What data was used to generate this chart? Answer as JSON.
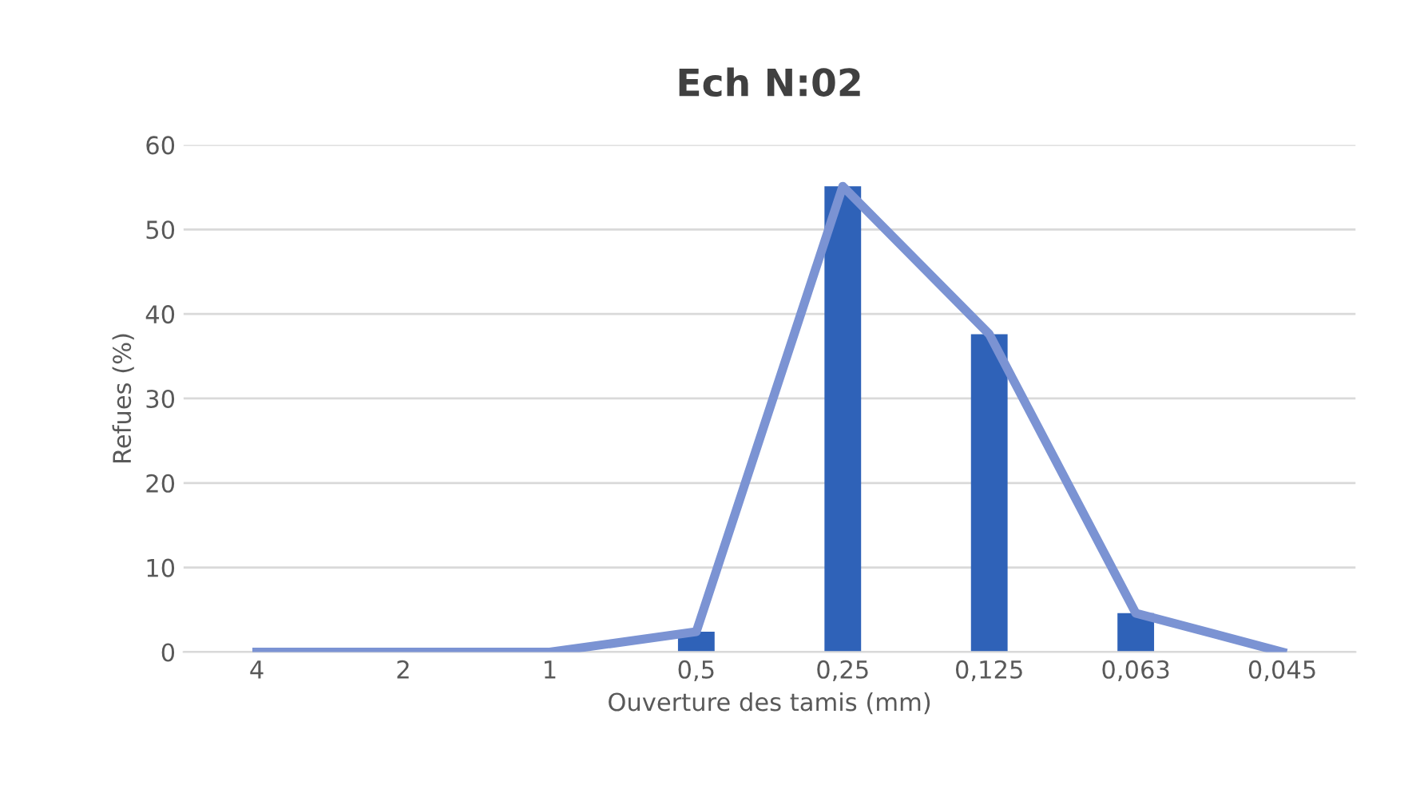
{
  "chart_data": {
    "type": "bar",
    "title": "Ech N:02",
    "xlabel": "Ouverture des tamis (mm)",
    "ylabel": "Refues (%)",
    "categories": [
      "4",
      "2",
      "1",
      "0,5",
      "0,25",
      "0,125",
      "0,063",
      "0,045"
    ],
    "series": [
      {
        "color": "#2f62b8",
        "values": [
          0,
          0,
          0,
          2.4,
          55.1,
          37.6,
          4.6,
          0
        ]
      },
      {
        "type": "line",
        "color": "#7b93d3",
        "values": [
          0,
          0,
          0,
          2.4,
          55.1,
          37.6,
          4.6,
          0
        ]
      }
    ],
    "ylim": [
      0,
      60
    ],
    "yticks": [
      0,
      10,
      20,
      30,
      40,
      50,
      60
    ],
    "grid": "y",
    "legend": false
  }
}
